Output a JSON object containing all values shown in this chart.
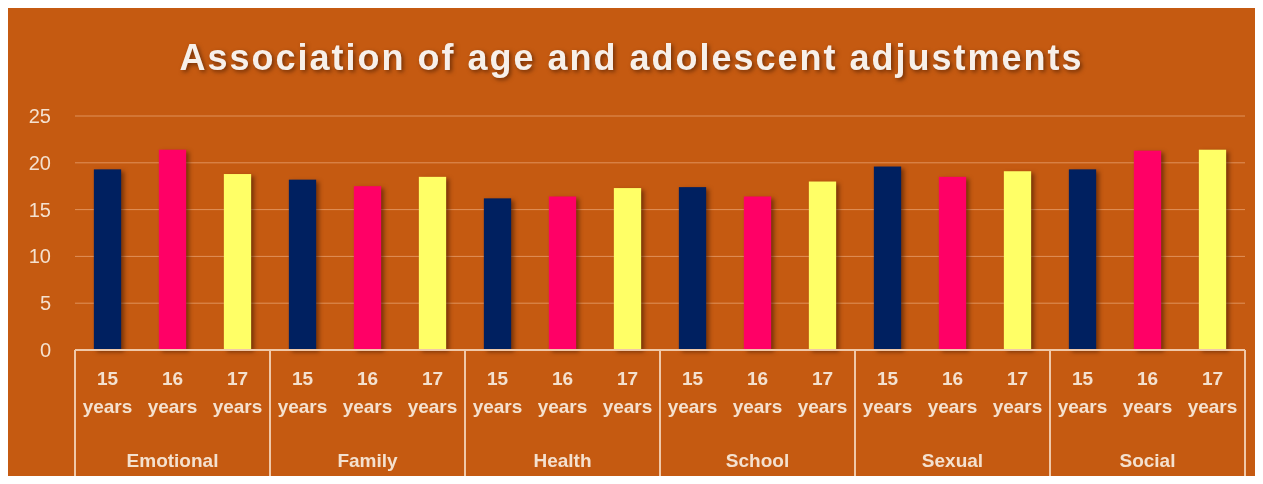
{
  "chart_data": {
    "type": "bar",
    "title": "Association of age and adolescent adjustments",
    "categories": [
      "Emotional",
      "Family",
      "Health",
      "School",
      "Sexual",
      "Social"
    ],
    "series": [
      {
        "name": "15 years",
        "color": "#002060",
        "values": [
          19.3,
          18.2,
          16.2,
          17.4,
          19.6,
          19.3
        ]
      },
      {
        "name": "16 years",
        "color": "#ff0066",
        "values": [
          21.4,
          17.5,
          16.4,
          16.4,
          18.5,
          21.3
        ]
      },
      {
        "name": "17 years",
        "color": "#ffff66",
        "values": [
          18.8,
          18.5,
          17.3,
          18.0,
          19.1,
          21.4
        ]
      }
    ],
    "ylim": [
      0,
      25
    ],
    "yticks": [
      0,
      5,
      10,
      15,
      20,
      25
    ],
    "grid": "y"
  }
}
